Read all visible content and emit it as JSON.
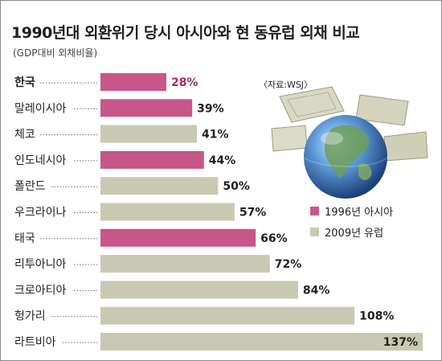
{
  "title": "1990년대 외환위기 당시 아시아와 현 동유럽 외채 비교",
  "subtitle": "(GDP대비 외채비율)",
  "source": "〈자료:WSJ〉",
  "colors": {
    "asia": "#c75689",
    "europe": "#c9c8b2",
    "highlight_text": "#a52a66"
  },
  "icons": {
    "globe": "globe-with-money-icon"
  },
  "legend": [
    {
      "label": "1996년 아시아",
      "series": "asia"
    },
    {
      "label": "2009년 유럽",
      "series": "europe"
    }
  ],
  "chart_data": {
    "type": "bar",
    "orientation": "horizontal",
    "title": "1990년대 외환위기 당시 아시아와 현 동유럽 외채 비교",
    "subtitle": "(GDP대비 외채비율)",
    "xlabel": "",
    "ylabel": "",
    "unit": "%",
    "xlim": [
      0,
      137
    ],
    "categories": [
      "한국",
      "말레이시아",
      "체코",
      "인도네시아",
      "폴란드",
      "우크라이나",
      "태국",
      "리투아니아",
      "크로아티아",
      "헝가리",
      "라트비아"
    ],
    "values": [
      28,
      39,
      41,
      44,
      50,
      57,
      66,
      72,
      84,
      108,
      137
    ],
    "value_labels": [
      "28%",
      "39%",
      "41%",
      "44%",
      "50%",
      "57%",
      "66%",
      "72%",
      "84%",
      "108%",
      "137%"
    ],
    "groups": [
      "1996년 아시아",
      "1996년 아시아",
      "2009년 유럽",
      "1996년 아시아",
      "2009년 유럽",
      "2009년 유럽",
      "1996년 아시아",
      "2009년 유럽",
      "2009년 유럽",
      "2009년 유럽",
      "2009년 유럽"
    ],
    "highlight": "한국",
    "legend_position": "right"
  }
}
